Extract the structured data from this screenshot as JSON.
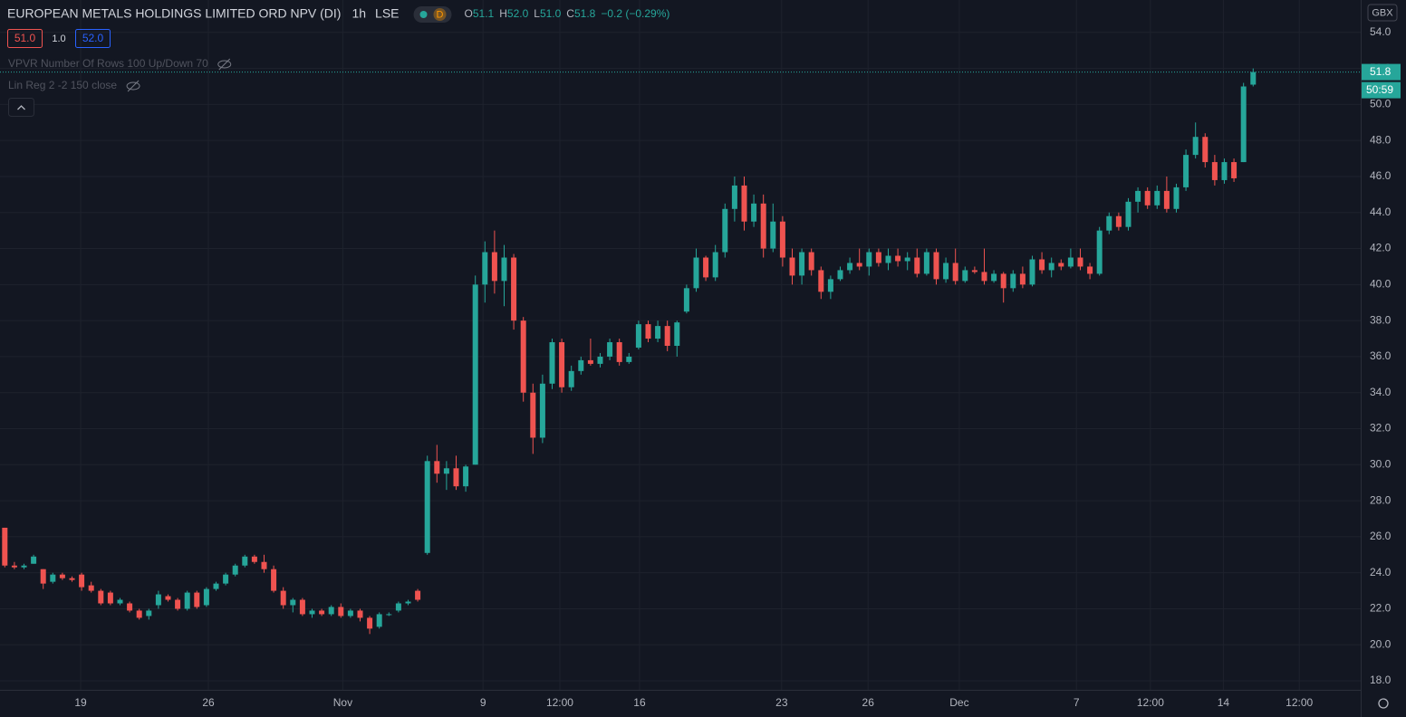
{
  "header": {
    "title": "EUROPEAN METALS HOLDINGS LIMITED ORD NPV (DI)",
    "interval": "1h",
    "exchange": "LSE",
    "badge": "D",
    "ohlc": [
      {
        "key": "O",
        "text": "51.1"
      },
      {
        "key": "H",
        "text": "52.0"
      },
      {
        "key": "L",
        "text": "51.0"
      },
      {
        "key": "C",
        "text": "51.8"
      }
    ],
    "change": "−0.2 (−0.29%)",
    "bid": "51.0",
    "spread": "1.0",
    "ask": "52.0",
    "indicators": [
      "VPVR Number Of Rows 100 Up/Down 70",
      "Lin Reg 2 -2 150 close"
    ],
    "currency": "GBX",
    "countdown": "50:59"
  },
  "chart_data": {
    "type": "candlestick",
    "up_color": "#26a69a",
    "down_color": "#ef5350",
    "grid": true,
    "xlim": [
      -0.5,
      141.2
    ],
    "ylim": [
      17.5,
      55.8
    ],
    "xticks": [
      {
        "value": 7.9,
        "label": "19"
      },
      {
        "value": 21.2,
        "label": "26"
      },
      {
        "value": 35.2,
        "label": "Nov"
      },
      {
        "value": 49.8,
        "label": "9"
      },
      {
        "value": 57.8,
        "label": "12:00"
      },
      {
        "value": 66.1,
        "label": "16"
      },
      {
        "value": 80.9,
        "label": "23"
      },
      {
        "value": 89.9,
        "label": "26"
      },
      {
        "value": 99.4,
        "label": "Dec"
      },
      {
        "value": 111.6,
        "label": "7"
      },
      {
        "value": 119.3,
        "label": "12:00"
      },
      {
        "value": 126.9,
        "label": "14"
      },
      {
        "value": 134.8,
        "label": "12:00"
      }
    ],
    "yticks": [
      {
        "value": 18,
        "label": "18.0"
      },
      {
        "value": 20,
        "label": "20.0"
      },
      {
        "value": 22,
        "label": "22.0"
      },
      {
        "value": 24,
        "label": "24.0"
      },
      {
        "value": 26,
        "label": "26.0"
      },
      {
        "value": 28,
        "label": "28.0"
      },
      {
        "value": 30,
        "label": "30.0"
      },
      {
        "value": 32,
        "label": "32.0"
      },
      {
        "value": 34,
        "label": "34.0"
      },
      {
        "value": 36,
        "label": "36.0"
      },
      {
        "value": 38,
        "label": "38.0"
      },
      {
        "value": 40,
        "label": "40.0"
      },
      {
        "value": 42,
        "label": "42.0"
      },
      {
        "value": 44,
        "label": "44.0"
      },
      {
        "value": 46,
        "label": "46.0"
      },
      {
        "value": 48,
        "label": "48.0"
      },
      {
        "value": 50,
        "label": "50.0"
      },
      {
        "value": 52,
        "label": "52.0"
      },
      {
        "value": 54,
        "label": "54.0"
      }
    ],
    "candles": [
      [
        26.5,
        26.5,
        24.3,
        24.4
      ],
      [
        24.4,
        24.6,
        24.2,
        24.3
      ],
      [
        24.3,
        24.5,
        24.2,
        24.4
      ],
      [
        24.5,
        25.0,
        24.5,
        24.9
      ],
      [
        24.2,
        24.2,
        23.1,
        23.4
      ],
      [
        23.5,
        24.0,
        23.4,
        23.9
      ],
      [
        23.9,
        24.0,
        23.6,
        23.7
      ],
      [
        23.7,
        23.8,
        23.5,
        23.6
      ],
      [
        23.9,
        24.0,
        23.0,
        23.2
      ],
      [
        23.3,
        23.5,
        22.9,
        23.0
      ],
      [
        23.0,
        23.1,
        22.2,
        22.3
      ],
      [
        22.9,
        23.0,
        22.2,
        22.3
      ],
      [
        22.3,
        22.6,
        22.2,
        22.5
      ],
      [
        22.3,
        22.4,
        21.8,
        21.9
      ],
      [
        21.9,
        22.0,
        21.4,
        21.5
      ],
      [
        21.6,
        22.0,
        21.4,
        21.9
      ],
      [
        22.2,
        23.0,
        22.0,
        22.8
      ],
      [
        22.7,
        22.8,
        22.4,
        22.5
      ],
      [
        22.5,
        22.6,
        21.9,
        22.0
      ],
      [
        22.0,
        23.0,
        21.9,
        22.9
      ],
      [
        22.9,
        23.0,
        22.0,
        22.1
      ],
      [
        22.2,
        23.2,
        22.1,
        23.1
      ],
      [
        23.1,
        23.5,
        23.0,
        23.4
      ],
      [
        23.4,
        24.0,
        23.3,
        23.9
      ],
      [
        23.9,
        24.5,
        23.8,
        24.4
      ],
      [
        24.4,
        25.0,
        24.3,
        24.9
      ],
      [
        24.9,
        25.0,
        24.5,
        24.6
      ],
      [
        24.6,
        25.0,
        24.0,
        24.2
      ],
      [
        24.2,
        24.4,
        22.9,
        23.0
      ],
      [
        23.0,
        23.2,
        22.0,
        22.2
      ],
      [
        22.2,
        22.6,
        21.8,
        22.5
      ],
      [
        22.5,
        22.6,
        21.6,
        21.7
      ],
      [
        21.7,
        22.0,
        21.5,
        21.9
      ],
      [
        21.9,
        22.0,
        21.6,
        21.7
      ],
      [
        21.7,
        22.2,
        21.6,
        22.1
      ],
      [
        22.1,
        22.3,
        21.5,
        21.6
      ],
      [
        21.6,
        22.0,
        21.5,
        21.9
      ],
      [
        21.9,
        22.0,
        21.3,
        21.5
      ],
      [
        21.5,
        21.6,
        20.6,
        20.9
      ],
      [
        21.0,
        21.8,
        20.9,
        21.7
      ],
      [
        21.7,
        21.8,
        21.6,
        21.7
      ],
      [
        21.9,
        22.4,
        21.8,
        22.3
      ],
      [
        22.3,
        22.5,
        22.2,
        22.4
      ],
      [
        23.0,
        23.1,
        22.4,
        22.5
      ],
      [
        25.1,
        30.5,
        25.0,
        30.2
      ],
      [
        30.2,
        31.1,
        29.0,
        29.5
      ],
      [
        29.5,
        30.2,
        28.6,
        29.8
      ],
      [
        29.8,
        30.5,
        28.6,
        28.8
      ],
      [
        28.8,
        30.0,
        28.5,
        29.9
      ],
      [
        30.0,
        40.5,
        30.0,
        40.0
      ],
      [
        40.0,
        42.4,
        39.0,
        41.8
      ],
      [
        41.8,
        43.0,
        39.5,
        40.2
      ],
      [
        40.2,
        42.2,
        38.8,
        41.5
      ],
      [
        41.5,
        41.7,
        37.5,
        38.0
      ],
      [
        38.0,
        38.2,
        33.5,
        34.0
      ],
      [
        34.0,
        34.5,
        30.6,
        31.5
      ],
      [
        31.5,
        35.0,
        31.2,
        34.5
      ],
      [
        34.5,
        37.0,
        34.2,
        36.8
      ],
      [
        36.8,
        37.0,
        34.0,
        34.3
      ],
      [
        34.3,
        35.5,
        34.1,
        35.2
      ],
      [
        35.2,
        36.0,
        35.0,
        35.8
      ],
      [
        35.8,
        37.0,
        35.5,
        35.6
      ],
      [
        35.6,
        36.2,
        35.4,
        36.0
      ],
      [
        36.0,
        37.0,
        35.8,
        36.8
      ],
      [
        36.8,
        37.0,
        35.5,
        35.7
      ],
      [
        35.7,
        36.2,
        35.6,
        36.0
      ],
      [
        36.5,
        38.0,
        36.4,
        37.8
      ],
      [
        37.8,
        38.0,
        36.8,
        37.0
      ],
      [
        37.0,
        38.0,
        36.8,
        37.7
      ],
      [
        37.7,
        38.0,
        36.3,
        36.6
      ],
      [
        36.6,
        38.0,
        36.0,
        37.9
      ],
      [
        38.5,
        40.0,
        38.4,
        39.8
      ],
      [
        39.8,
        42.0,
        39.6,
        41.5
      ],
      [
        41.5,
        41.6,
        40.2,
        40.4
      ],
      [
        40.4,
        42.2,
        40.2,
        41.8
      ],
      [
        41.8,
        44.5,
        41.5,
        44.2
      ],
      [
        44.2,
        46.0,
        43.5,
        45.5
      ],
      [
        45.5,
        46.0,
        43.0,
        43.5
      ],
      [
        43.5,
        45.0,
        43.2,
        44.5
      ],
      [
        44.5,
        45.0,
        41.5,
        42.0
      ],
      [
        42.0,
        44.5,
        41.8,
        43.5
      ],
      [
        43.5,
        43.8,
        41.0,
        41.5
      ],
      [
        41.5,
        42.0,
        40.0,
        40.5
      ],
      [
        40.5,
        42.0,
        40.0,
        41.8
      ],
      [
        41.8,
        42.0,
        40.5,
        40.8
      ],
      [
        40.8,
        41.0,
        39.2,
        39.6
      ],
      [
        39.6,
        40.5,
        39.2,
        40.3
      ],
      [
        40.3,
        41.0,
        40.2,
        40.8
      ],
      [
        40.8,
        41.5,
        40.6,
        41.2
      ],
      [
        41.2,
        42.0,
        40.8,
        41.0
      ],
      [
        41.0,
        42.0,
        40.5,
        41.8
      ],
      [
        41.8,
        42.0,
        41.0,
        41.2
      ],
      [
        41.2,
        42.0,
        40.8,
        41.6
      ],
      [
        41.6,
        42.0,
        41.0,
        41.3
      ],
      [
        41.3,
        41.8,
        40.8,
        41.5
      ],
      [
        41.5,
        42.0,
        40.4,
        40.6
      ],
      [
        40.6,
        42.0,
        40.5,
        41.8
      ],
      [
        41.8,
        42.0,
        40.0,
        40.3
      ],
      [
        40.3,
        41.5,
        40.1,
        41.2
      ],
      [
        41.2,
        42.0,
        40.0,
        40.2
      ],
      [
        40.2,
        41.0,
        40.1,
        40.8
      ],
      [
        40.8,
        41.0,
        40.6,
        40.7
      ],
      [
        40.7,
        42.0,
        40.0,
        40.2
      ],
      [
        40.2,
        40.8,
        40.1,
        40.6
      ],
      [
        40.6,
        40.7,
        39.0,
        39.8
      ],
      [
        39.8,
        40.8,
        39.6,
        40.6
      ],
      [
        40.6,
        41.0,
        39.8,
        40.0
      ],
      [
        40.0,
        41.6,
        39.9,
        41.4
      ],
      [
        41.4,
        41.8,
        40.6,
        40.8
      ],
      [
        40.8,
        41.5,
        40.4,
        41.2
      ],
      [
        41.2,
        41.4,
        40.8,
        41.0
      ],
      [
        41.0,
        42.0,
        40.9,
        41.5
      ],
      [
        41.5,
        42.0,
        40.8,
        41.0
      ],
      [
        41.0,
        41.2,
        40.3,
        40.6
      ],
      [
        40.6,
        43.2,
        40.5,
        43.0
      ],
      [
        43.0,
        44.0,
        42.8,
        43.8
      ],
      [
        43.8,
        44.0,
        43.0,
        43.2
      ],
      [
        43.2,
        44.8,
        43.0,
        44.6
      ],
      [
        44.6,
        45.4,
        44.0,
        45.2
      ],
      [
        45.2,
        45.4,
        44.2,
        44.4
      ],
      [
        44.4,
        45.5,
        44.2,
        45.2
      ],
      [
        45.2,
        46.0,
        44.0,
        44.2
      ],
      [
        44.2,
        45.6,
        44.0,
        45.4
      ],
      [
        45.4,
        47.5,
        45.2,
        47.2
      ],
      [
        47.2,
        49.0,
        47.0,
        48.2
      ],
      [
        48.2,
        48.4,
        46.5,
        46.8
      ],
      [
        46.8,
        47.2,
        45.5,
        45.8
      ],
      [
        45.8,
        47.0,
        45.6,
        46.8
      ],
      [
        46.8,
        47.0,
        45.7,
        45.9
      ],
      [
        46.8,
        51.2,
        46.8,
        51.0
      ],
      [
        51.1,
        52.0,
        51.0,
        51.8
      ]
    ]
  }
}
